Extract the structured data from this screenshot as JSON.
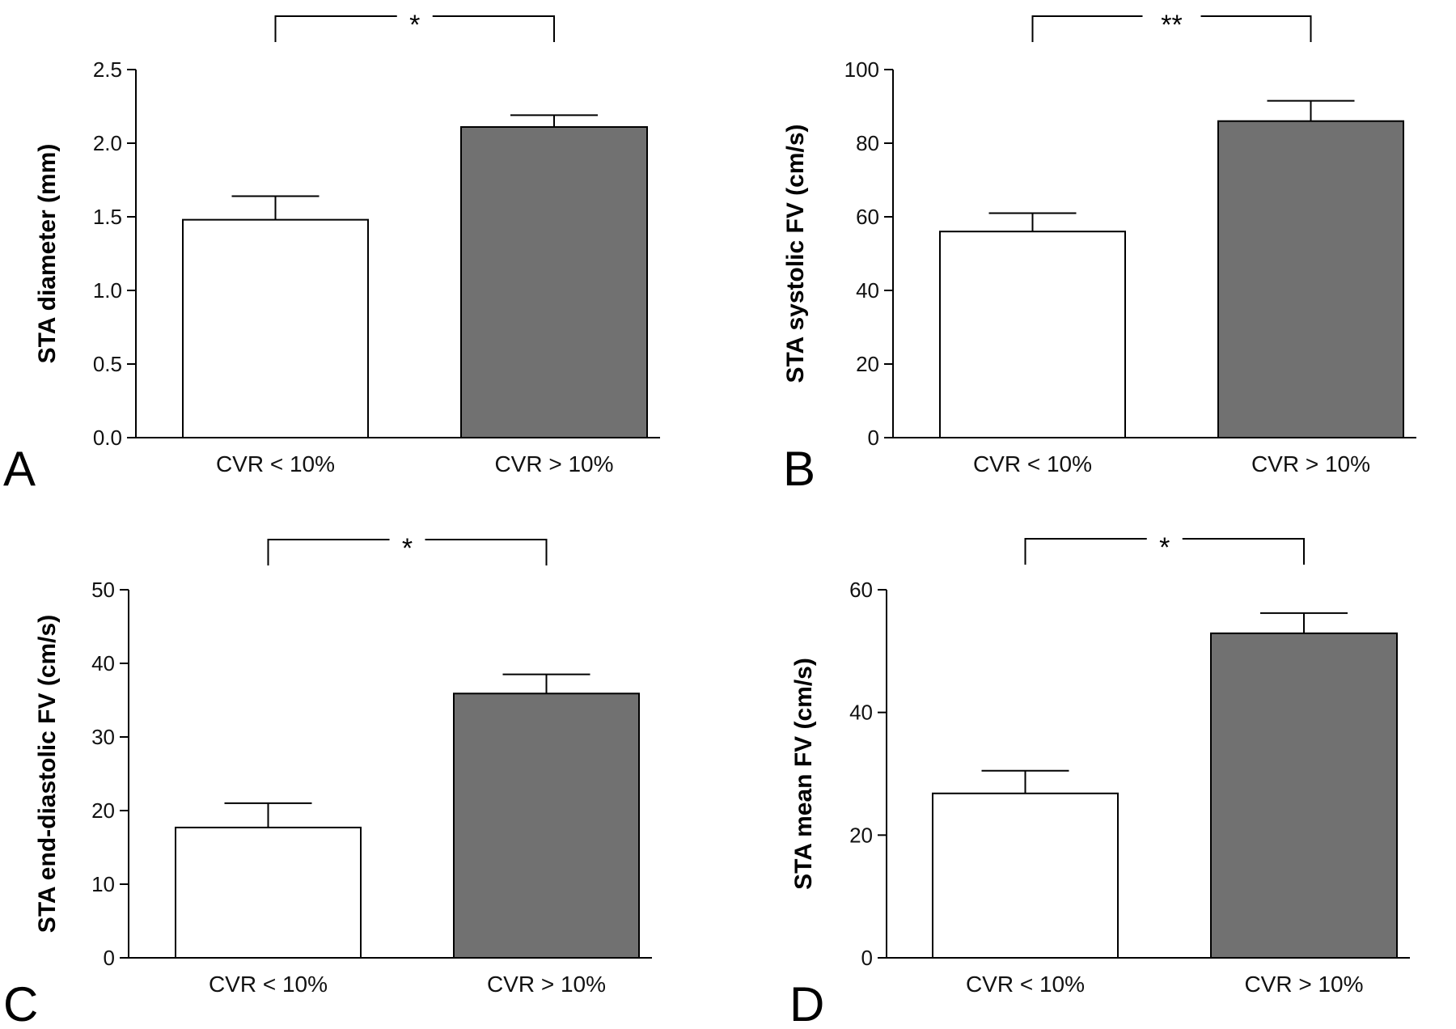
{
  "chart_data": [
    {
      "panel": "A",
      "type": "bar",
      "categories": [
        "CVR < 10%",
        "CVR > 10%"
      ],
      "values": [
        1.48,
        2.11
      ],
      "errors": [
        0.16,
        0.08
      ],
      "colors": [
        "#ffffff",
        "#717171"
      ],
      "ylabel": "STA diameter (mm)",
      "ylim": [
        0,
        2.5
      ],
      "yticks": [
        "0.0",
        "0.5",
        "1.0",
        "1.5",
        "2.0",
        "2.5"
      ],
      "significance": "*"
    },
    {
      "panel": "B",
      "type": "bar",
      "categories": [
        "CVR < 10%",
        "CVR > 10%"
      ],
      "values": [
        56,
        86
      ],
      "errors": [
        5,
        5.5
      ],
      "colors": [
        "#ffffff",
        "#717171"
      ],
      "ylabel": "STA systolic FV (cm/s)",
      "ylim": [
        0,
        100
      ],
      "yticks": [
        "0",
        "20",
        "40",
        "60",
        "80",
        "100"
      ],
      "significance": "**"
    },
    {
      "panel": "C",
      "type": "bar",
      "categories": [
        "CVR < 10%",
        "CVR > 10%"
      ],
      "values": [
        17.7,
        35.9
      ],
      "errors": [
        3.3,
        2.6
      ],
      "colors": [
        "#ffffff",
        "#717171"
      ],
      "ylabel": "STA end-diastolic FV (cm/s)",
      "ylim": [
        0,
        50
      ],
      "yticks": [
        "0",
        "10",
        "20",
        "30",
        "40",
        "50"
      ],
      "significance": "*"
    },
    {
      "panel": "D",
      "type": "bar",
      "categories": [
        "CVR < 10%",
        "CVR > 10%"
      ],
      "values": [
        26.8,
        52.9
      ],
      "errors": [
        3.7,
        3.3
      ],
      "colors": [
        "#ffffff",
        "#717171"
      ],
      "ylabel": "STA mean FV (cm/s)",
      "ylim": [
        0,
        60
      ],
      "yticks": [
        "0",
        "20",
        "40",
        "60"
      ],
      "significance": "*"
    }
  ]
}
